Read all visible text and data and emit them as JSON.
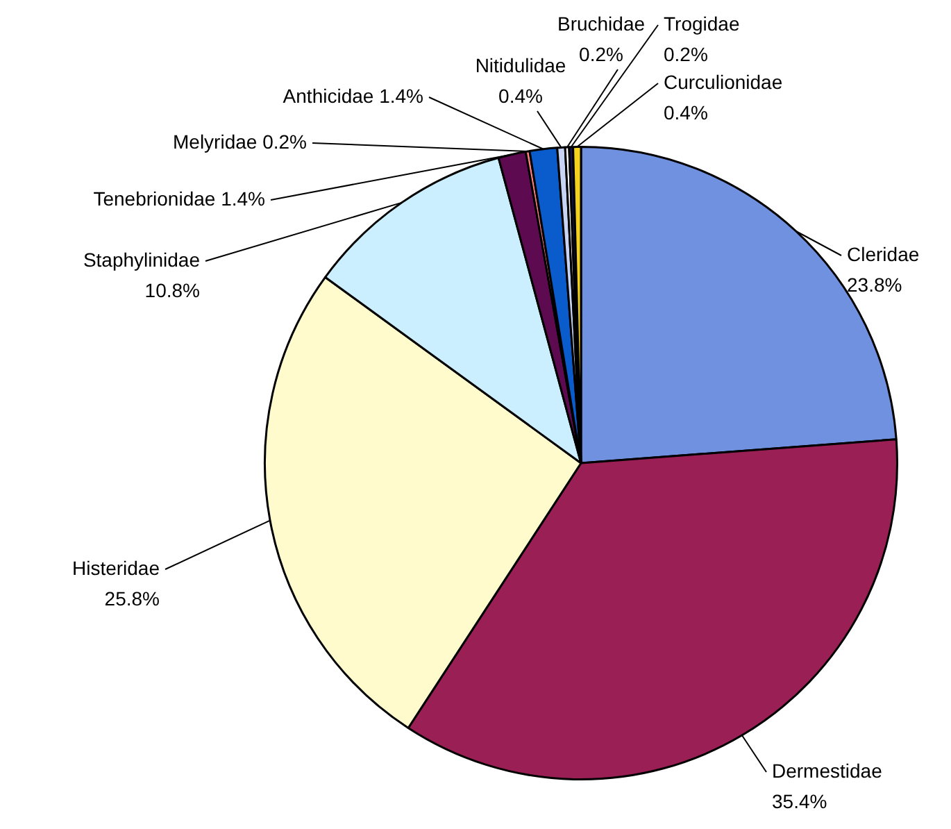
{
  "chart_data": {
    "type": "pie",
    "categories": [
      "Cleridae",
      "Dermestidae",
      "Histeridae",
      "Staphylinidae",
      "Tenebrionidae",
      "Melyridae",
      "Anthicidae",
      "Nitidulidae",
      "Bruchidae",
      "Trogidae",
      "Curculionidae"
    ],
    "values": [
      23.8,
      35.4,
      25.8,
      10.8,
      1.4,
      0.2,
      1.4,
      0.4,
      0.2,
      0.2,
      0.4
    ],
    "value_labels": [
      "23.8%",
      "35.4%",
      "25.8%",
      "10.8%",
      "1.4%",
      "0.2%",
      "1.4%",
      "0.4%",
      "0.2%",
      "0.2%",
      "0.4%"
    ],
    "colors": [
      "#7090e0",
      "#9a1f55",
      "#fffbcc",
      "#ccefff",
      "#5e0a50",
      "#ff8080",
      "#0a5ccc",
      "#c8d4f4",
      "#ffffff",
      "#14144a",
      "#f2d21e"
    ],
    "legend": false
  }
}
